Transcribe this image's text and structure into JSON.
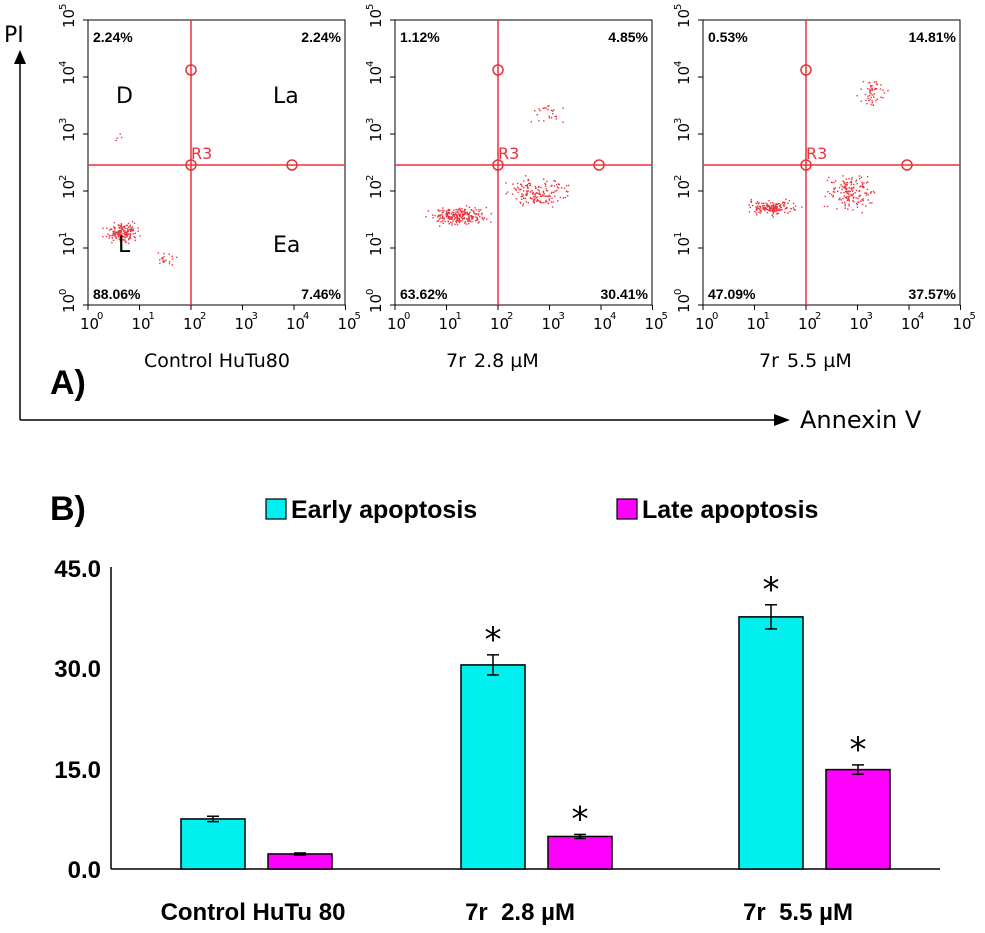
{
  "panel_a": {
    "label": "A)",
    "y_axis_label": "PI",
    "x_axis_label": "Annexin V",
    "gate_label": "R3",
    "quadrant_names": {
      "ul": "D",
      "ur": "La",
      "ll": "L",
      "lr": "Ea"
    },
    "tick_base": "10",
    "tick_exponents": [
      "0",
      "1",
      "2",
      "3",
      "4",
      "5"
    ],
    "plots": [
      {
        "caption_prefix": "Control HuTu80",
        "caption_dose": "",
        "ul": "2.24%",
        "ur": "2.24%",
        "ll": "88.06%",
        "lr": "7.46%"
      },
      {
        "caption_prefix": "7r",
        "caption_dose": "2.8 µM",
        "ul": "1.12%",
        "ur": "4.85%",
        "ll": "63.62%",
        "lr": "30.41%"
      },
      {
        "caption_prefix": "7r",
        "caption_dose": "5.5 µM",
        "ul": "0.53%",
        "ur": "14.81%",
        "ll": "47.09%",
        "lr": "37.57%"
      }
    ]
  },
  "colors": {
    "dots": "#e8323c",
    "gate": "#e8323c",
    "early": "#00f0f0",
    "late": "#ff00ff",
    "axis": "#000000"
  },
  "chart_data": {
    "type": "bar",
    "panel_label": "B)",
    "categories": [
      "Control HuTu 80",
      "7r  2.8 µM",
      "7r  5.5 µM"
    ],
    "series": [
      {
        "name": "Early apoptosis",
        "values": [
          7.46,
          30.41,
          37.57
        ],
        "errors": [
          0.4,
          1.5,
          1.8
        ],
        "significant": [
          false,
          true,
          true
        ]
      },
      {
        "name": "Late apoptosis",
        "values": [
          2.24,
          4.85,
          14.81
        ],
        "errors": [
          0.15,
          0.3,
          0.7
        ],
        "significant": [
          false,
          true,
          true
        ]
      }
    ],
    "significance_marker": "*",
    "ylim": [
      0,
      45
    ],
    "yticks": [
      "0.0",
      "15.0",
      "30.0",
      "45.0"
    ],
    "xlabel": "",
    "ylabel": "",
    "legend_position": "top"
  }
}
